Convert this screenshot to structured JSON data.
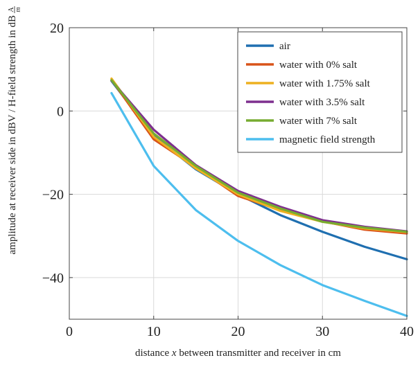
{
  "chart_data": {
    "type": "line",
    "xlabel": "distance x between transmitter and receiver in cm",
    "xlabel_parts": [
      {
        "text": "distance ",
        "italic": false
      },
      {
        "text": "x",
        "italic": true
      },
      {
        "text": " between transmitter and receiver in cm",
        "italic": false
      }
    ],
    "ylabel": "amplitude at receiver side in dBV / H-field strength in dB A/m",
    "ylabel_main": "amplitude at receiver side in dBV / H-field strength in dB",
    "ylabel_unit_num": "A",
    "ylabel_unit_den": "m",
    "xlim": [
      0,
      40
    ],
    "ylim": [
      -50,
      20
    ],
    "xticks": [
      0,
      10,
      20,
      30,
      40
    ],
    "xtick_labels": [
      "0",
      "10",
      "20",
      "30",
      "40"
    ],
    "yticks": [
      -40,
      -20,
      0,
      20
    ],
    "ytick_labels": [
      "−40",
      "−20",
      "0",
      "20"
    ],
    "grid": true,
    "legend_position": "top-right",
    "series": [
      {
        "name": "air",
        "color": "#1f6fb0",
        "x": [
          5,
          10,
          15,
          20,
          25,
          30,
          35,
          40
        ],
        "y": [
          7.2,
          -6.0,
          -14.0,
          -20.0,
          -25.0,
          -29.0,
          -32.6,
          -35.6
        ]
      },
      {
        "name": "water with 0% salt",
        "color": "#d95319",
        "x": [
          5,
          10,
          15,
          20,
          25,
          30,
          35,
          40
        ],
        "y": [
          7.5,
          -6.8,
          -13.5,
          -20.4,
          -23.8,
          -26.5,
          -28.5,
          -29.4
        ]
      },
      {
        "name": "water with 1.75% salt",
        "color": "#edb120",
        "x": [
          5,
          10,
          15,
          20,
          25,
          30,
          35,
          40
        ],
        "y": [
          7.8,
          -6.2,
          -13.8,
          -20.0,
          -24.0,
          -26.6,
          -28.2,
          -29.1
        ]
      },
      {
        "name": "water with 3.5% salt",
        "color": "#7e2f8e",
        "x": [
          5,
          10,
          15,
          20,
          25,
          30,
          35,
          40
        ],
        "y": [
          7.3,
          -4.5,
          -13.0,
          -19.2,
          -23.0,
          -26.2,
          -27.8,
          -28.9
        ]
      },
      {
        "name": "water with 7% salt",
        "color": "#77ac30",
        "x": [
          5,
          10,
          15,
          20,
          25,
          30,
          35,
          40
        ],
        "y": [
          7.4,
          -5.4,
          -13.2,
          -19.6,
          -23.4,
          -26.6,
          -28.0,
          -29.0
        ]
      },
      {
        "name": "magnetic field strength",
        "color": "#4dbeee",
        "x": [
          5,
          10,
          15,
          20,
          25,
          30,
          35,
          40
        ],
        "y": [
          4.3,
          -13.2,
          -23.8,
          -31.2,
          -37.0,
          -41.8,
          -45.6,
          -49.2
        ]
      }
    ]
  }
}
